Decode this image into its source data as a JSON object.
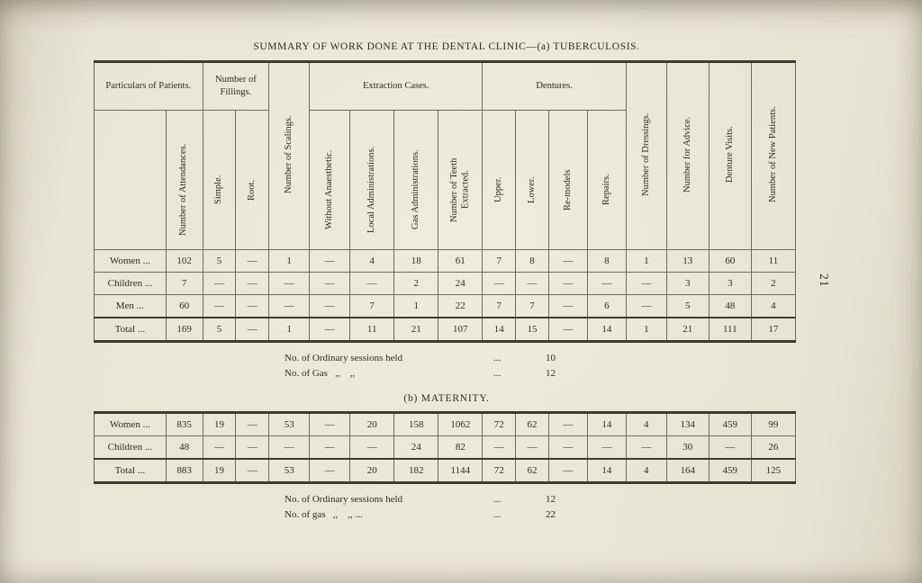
{
  "page": {
    "title": "SUMMARY OF WORK DONE AT THE DENTAL CLINIC—(a) TUBERCULOSIS.",
    "page_number": "21"
  },
  "header": {
    "groups": {
      "particulars": "Particulars of Patients.",
      "fillings": "Number of Fillings.",
      "scalings": "Number of Scalings.",
      "extraction": "Extraction Cases.",
      "dentures": "Dentures.",
      "dressings": "Number of Dressings.",
      "advice": "Number for Advice.",
      "denture_visits": "Denture Visits.",
      "new_patients": "Number of New Patients."
    },
    "subs": {
      "attendances": "Number of Attendances.",
      "simple": "Simple.",
      "root": "Root.",
      "without_anaesthetic": "Without Anaesthetic.",
      "local_administrations": "Local Administrations.",
      "gas_administrations": "Gas Administrations.",
      "teeth_extracted": "Number of Teeth Extracted.",
      "upper": "Upper.",
      "lower": "Lower.",
      "remodels": "Re-models",
      "repairs": "Repairs."
    }
  },
  "tuberculosis": {
    "rows": [
      {
        "label": "Women ...",
        "values": [
          "102",
          "5",
          "—",
          "1",
          "—",
          "4",
          "18",
          "61",
          "7",
          "8",
          "—",
          "8",
          "1",
          "13",
          "60",
          "11"
        ]
      },
      {
        "label": "Children ...",
        "values": [
          "7",
          "—",
          "—",
          "—",
          "—",
          "—",
          "2",
          "24",
          "—",
          "—",
          "—",
          "—",
          "—",
          "3",
          "3",
          "2"
        ]
      },
      {
        "label": "Men ...",
        "values": [
          "60",
          "—",
          "—",
          "—",
          "—",
          "7",
          "1",
          "22",
          "7",
          "7",
          "—",
          "6",
          "—",
          "5",
          "48",
          "4"
        ]
      },
      {
        "label": "Total ...",
        "values": [
          "169",
          "5",
          "—",
          "1",
          "—",
          "11",
          "21",
          "107",
          "14",
          "15",
          "—",
          "14",
          "1",
          "21",
          "111",
          "17"
        ],
        "total": true
      }
    ],
    "notes": [
      {
        "label": "No. of Ordinary sessions held",
        "leader": "...",
        "value": "10"
      },
      {
        "label": "No. of Gas   ,,    ,,",
        "leader": "...",
        "value": "12"
      }
    ]
  },
  "maternity": {
    "heading": "(b) MATERNITY.",
    "rows": [
      {
        "label": "Women ...",
        "values": [
          "835",
          "19",
          "—",
          "53",
          "—",
          "20",
          "158",
          "1062",
          "72",
          "62",
          "—",
          "14",
          "4",
          "134",
          "459",
          "99"
        ]
      },
      {
        "label": "Children ...",
        "values": [
          "48",
          "—",
          "—",
          "—",
          "—",
          "—",
          "24",
          "82",
          "—",
          "—",
          "—",
          "—",
          "—",
          "30",
          "—",
          "26"
        ]
      },
      {
        "label": "Total ...",
        "values": [
          "883",
          "19",
          "—",
          "53",
          "—",
          "20",
          "182",
          "1144",
          "72",
          "62",
          "—",
          "14",
          "4",
          "164",
          "459",
          "125"
        ],
        "total": true
      }
    ],
    "notes": [
      {
        "label": "No. of Ordinary sessions held",
        "leader": "...",
        "value": "12"
      },
      {
        "label": "No. of gas   ,,    ,, ...",
        "leader": "...",
        "value": "22"
      }
    ]
  }
}
